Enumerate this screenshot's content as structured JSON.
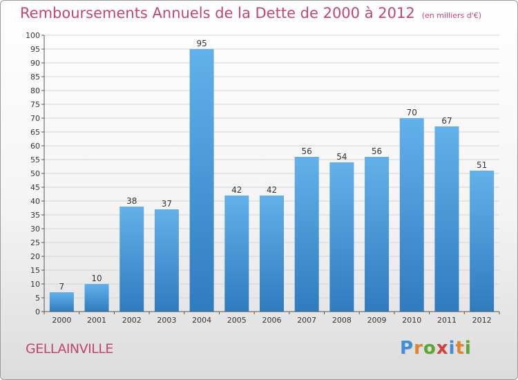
{
  "title": "Remboursements Annuels de la Dette de 2000 à 2012",
  "unit": "(en milliers d'€)",
  "commune": "GELLAINVILLE",
  "logo": {
    "letters": [
      "P",
      "r",
      "o",
      "x",
      "i",
      "t",
      "i"
    ],
    "colors": [
      "#3f8ed8",
      "#e3832a",
      "#5aa830",
      "#d43f3f",
      "#3f8ed8",
      "#e3832a",
      "#5aa830"
    ]
  },
  "colors": {
    "title": "#c2456f",
    "bar_top": "#62b1ea",
    "bar_bottom": "#2f7bbf"
  },
  "chart_data": {
    "type": "bar",
    "title": "Remboursements Annuels de la Dette de 2000 à 2012",
    "subtitle": "(en milliers d'€)",
    "categories": [
      "2000",
      "2001",
      "2002",
      "2003",
      "2004",
      "2005",
      "2006",
      "2007",
      "2008",
      "2009",
      "2010",
      "2011",
      "2012"
    ],
    "values": [
      7,
      10,
      38,
      37,
      95,
      42,
      42,
      56,
      54,
      56,
      70,
      67,
      51
    ],
    "ylim": [
      0,
      100
    ],
    "yticks": [
      0,
      5,
      10,
      15,
      20,
      25,
      30,
      35,
      40,
      45,
      50,
      55,
      60,
      65,
      70,
      75,
      80,
      85,
      90,
      95,
      100
    ],
    "grid": true,
    "legend": "none"
  }
}
